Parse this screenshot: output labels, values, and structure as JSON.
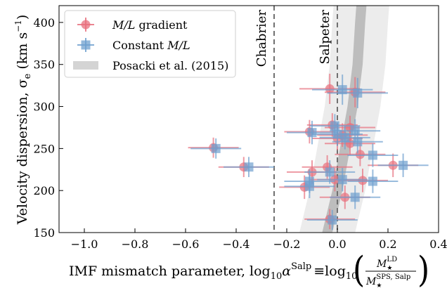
{
  "chart_data": {
    "type": "scatter",
    "xlabel": "IMF mismatch parameter, log",
    "xlabel_parts": {
      "prefix": "IMF mismatch parameter, log",
      "sub1": "10",
      "alpha": "α",
      "sup": "Salp",
      "equiv": "≡",
      "log2": "log",
      "sub2": "10",
      "num": "M",
      "num_star": "★",
      "num_sup": "LD",
      "den": "M",
      "den_star": "★",
      "den_sup": "SPS, Salp"
    },
    "ylabel": "Velocity dispersion, σ",
    "ylabel_parts": {
      "main": "Velocity dispersion, σ",
      "sub": "e",
      "units": " (km s",
      "units_sup": "−1",
      "units_close": ")"
    },
    "xlim": [
      -1.1,
      0.4
    ],
    "ylim": [
      150,
      420
    ],
    "xticks": [
      -1.0,
      -0.8,
      -0.6,
      -0.4,
      -0.2,
      0.0,
      0.2,
      0.4
    ],
    "xtick_labels": [
      "−1.0",
      "−0.8",
      "−0.6",
      "−0.4",
      "−0.2",
      "0.0",
      "0.2",
      "0.4"
    ],
    "yticks": [
      150,
      200,
      250,
      300,
      350,
      400
    ],
    "ytick_labels": [
      "150",
      "200",
      "250",
      "300",
      "350",
      "400"
    ],
    "legend_position": "top-left",
    "legend": [
      {
        "label_italic": "M/L",
        "label_rest": " gradient",
        "color": "#e8707e",
        "marker": "circle"
      },
      {
        "label_plain": "Constant ",
        "label_italic": "M/L",
        "color": "#6fa0cf",
        "marker": "square"
      },
      {
        "label_plain": "Posacki et al. (2015)",
        "color": "#d4d4d4",
        "marker": "band"
      }
    ],
    "reference_lines": [
      {
        "label": "Chabrier",
        "x": -0.25,
        "style": "dashed",
        "color": "#707070"
      },
      {
        "label": "Salpeter",
        "x": 0.0,
        "style": "dashed",
        "color": "#707070"
      }
    ],
    "band": {
      "name": "Posacki et al. (2015)",
      "center": [
        [
          -0.04,
          150
        ],
        [
          0.0,
          200
        ],
        [
          0.03,
          250
        ],
        [
          0.06,
          300
        ],
        [
          0.08,
          350
        ],
        [
          0.09,
          400
        ],
        [
          0.095,
          420
        ]
      ],
      "inner_halfwidth": 0.02,
      "outer_halfwidth": 0.11,
      "inner_color": "#bdbdbd",
      "outer_color": "#ececec"
    },
    "series": [
      {
        "name": "M/L gradient",
        "marker": "circle",
        "color": "#e8707e",
        "points": [
          {
            "x": -0.49,
            "y": 251,
            "xerr": 0.1,
            "yerr": 12
          },
          {
            "x": -0.37,
            "y": 228,
            "xerr": 0.1,
            "yerr": 12
          },
          {
            "x": -0.03,
            "y": 321,
            "xerr": 0.12,
            "yerr": 18
          },
          {
            "x": 0.07,
            "y": 317,
            "xerr": 0.12,
            "yerr": 18
          },
          {
            "x": -0.11,
            "y": 270,
            "xerr": 0.1,
            "yerr": 14
          },
          {
            "x": -0.02,
            "y": 278,
            "xerr": 0.1,
            "yerr": 14
          },
          {
            "x": 0.0,
            "y": 262,
            "xerr": 0.1,
            "yerr": 14
          },
          {
            "x": 0.05,
            "y": 275,
            "xerr": 0.1,
            "yerr": 14
          },
          {
            "x": 0.02,
            "y": 266,
            "xerr": 0.1,
            "yerr": 14
          },
          {
            "x": 0.05,
            "y": 256,
            "xerr": 0.1,
            "yerr": 14
          },
          {
            "x": 0.09,
            "y": 243,
            "xerr": 0.1,
            "yerr": 14
          },
          {
            "x": -0.04,
            "y": 228,
            "xerr": 0.1,
            "yerr": 14
          },
          {
            "x": -0.1,
            "y": 222,
            "xerr": 0.1,
            "yerr": 14
          },
          {
            "x": -0.01,
            "y": 213,
            "xerr": 0.1,
            "yerr": 14
          },
          {
            "x": 0.1,
            "y": 212,
            "xerr": 0.1,
            "yerr": 14
          },
          {
            "x": -0.13,
            "y": 204,
            "xerr": 0.1,
            "yerr": 14
          },
          {
            "x": 0.22,
            "y": 230,
            "xerr": 0.1,
            "yerr": 14
          },
          {
            "x": 0.03,
            "y": 192,
            "xerr": 0.1,
            "yerr": 14
          },
          {
            "x": -0.03,
            "y": 166,
            "xerr": 0.1,
            "yerr": 12
          }
        ]
      },
      {
        "name": "Constant M/L",
        "marker": "square",
        "color": "#6fa0cf",
        "points": [
          {
            "x": -0.48,
            "y": 250,
            "xerr": 0.1,
            "yerr": 12
          },
          {
            "x": -0.35,
            "y": 228,
            "xerr": 0.1,
            "yerr": 12
          },
          {
            "x": 0.02,
            "y": 320,
            "xerr": 0.12,
            "yerr": 18
          },
          {
            "x": 0.08,
            "y": 316,
            "xerr": 0.12,
            "yerr": 18
          },
          {
            "x": -0.1,
            "y": 269,
            "xerr": 0.1,
            "yerr": 14
          },
          {
            "x": -0.01,
            "y": 277,
            "xerr": 0.1,
            "yerr": 14
          },
          {
            "x": 0.03,
            "y": 263,
            "xerr": 0.1,
            "yerr": 14
          },
          {
            "x": 0.07,
            "y": 271,
            "xerr": 0.1,
            "yerr": 14
          },
          {
            "x": 0.0,
            "y": 267,
            "xerr": 0.1,
            "yerr": 14
          },
          {
            "x": 0.08,
            "y": 258,
            "xerr": 0.1,
            "yerr": 14
          },
          {
            "x": 0.14,
            "y": 242,
            "xerr": 0.1,
            "yerr": 14
          },
          {
            "x": -0.03,
            "y": 222,
            "xerr": 0.1,
            "yerr": 14
          },
          {
            "x": -0.11,
            "y": 211,
            "xerr": 0.1,
            "yerr": 14
          },
          {
            "x": 0.02,
            "y": 213,
            "xerr": 0.1,
            "yerr": 14
          },
          {
            "x": 0.14,
            "y": 211,
            "xerr": 0.1,
            "yerr": 14
          },
          {
            "x": -0.11,
            "y": 205,
            "xerr": 0.1,
            "yerr": 14
          },
          {
            "x": 0.26,
            "y": 230,
            "xerr": 0.1,
            "yerr": 14
          },
          {
            "x": 0.07,
            "y": 192,
            "xerr": 0.1,
            "yerr": 14
          },
          {
            "x": -0.02,
            "y": 165,
            "xerr": 0.1,
            "yerr": 12
          }
        ]
      }
    ]
  }
}
